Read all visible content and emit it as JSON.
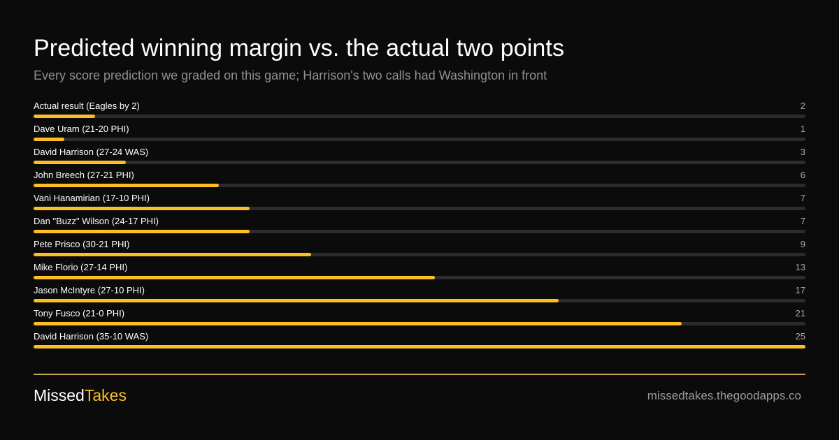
{
  "header": {
    "title": "Predicted winning margin vs. the actual two points",
    "subtitle": "Every score prediction we graded on this game; Harrison's two calls had Washington in front"
  },
  "colors": {
    "accent": "#fbbf24",
    "track": "#2b2b31",
    "background": "#0b0b0b",
    "divider": "#c9a54a"
  },
  "chart_data": {
    "type": "bar",
    "orientation": "horizontal",
    "xlim": [
      0,
      25
    ],
    "categories": [
      "Actual result (Eagles by 2)",
      "Dave Uram (21-20 PHI)",
      "David Harrison (27-24 WAS)",
      "John Breech (27-21 PHI)",
      "Vani Hanamirian (17-10 PHI)",
      "Dan \"Buzz\" Wilson (24-17 PHI)",
      "Pete Prisco (30-21 PHI)",
      "Mike Florio (27-14 PHI)",
      "Jason McIntyre (27-10 PHI)",
      "Tony Fusco (21-0 PHI)",
      "David Harrison (35-10 WAS)"
    ],
    "values": [
      2,
      1,
      3,
      6,
      7,
      7,
      9,
      13,
      17,
      21,
      25
    ]
  },
  "footer": {
    "brand_part1": "Missed",
    "brand_part2": "Takes",
    "site": "missedtakes.thegoodapps.co"
  }
}
